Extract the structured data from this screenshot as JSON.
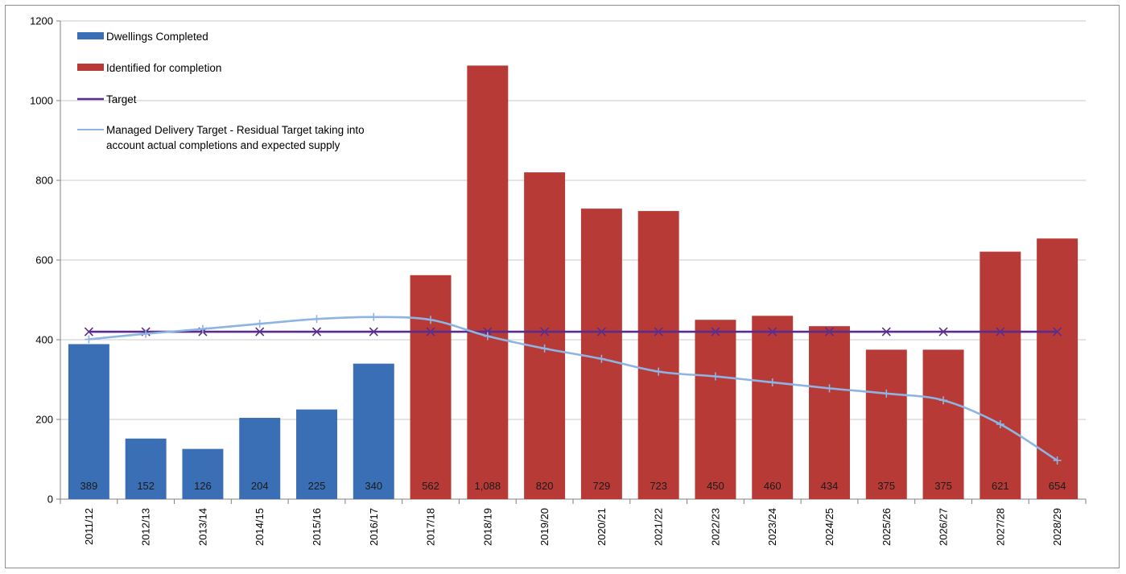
{
  "chart_data": {
    "type": "bar",
    "categories": [
      "2011/12",
      "2012/13",
      "2013/14",
      "2014/15",
      "2015/16",
      "2016/17",
      "2017/18",
      "2018/19",
      "2019/20",
      "2020/21",
      "2021/22",
      "2022/23",
      "2023/24",
      "2024/25",
      "2025/26",
      "2026/27",
      "2027/28",
      "2028/29"
    ],
    "ylim": [
      0,
      1200
    ],
    "yticks": [
      0,
      200,
      400,
      600,
      800,
      1000,
      1200
    ],
    "grid": true,
    "legend_position": "top-left",
    "bar_series": [
      {
        "name": "Dwellings Completed",
        "color": "#3a6fb5",
        "values": [
          389,
          152,
          126,
          204,
          225,
          340,
          null,
          null,
          null,
          null,
          null,
          null,
          null,
          null,
          null,
          null,
          null,
          null
        ]
      },
      {
        "name": "Identified for completion",
        "color": "#b83a36",
        "values": [
          null,
          null,
          null,
          null,
          null,
          null,
          562,
          1088,
          820,
          729,
          723,
          450,
          460,
          434,
          375,
          375,
          621,
          654
        ]
      }
    ],
    "data_labels": [
      "389",
      "152",
      "126",
      "204",
      "225",
      "340",
      "562",
      "1,088",
      "820",
      "729",
      "723",
      "450",
      "460",
      "434",
      "375",
      "375",
      "621",
      "654"
    ],
    "line_series": [
      {
        "name": "Target",
        "color": "#5a2d8c",
        "marker": "x",
        "values": [
          420,
          420,
          420,
          420,
          420,
          420,
          420,
          420,
          420,
          420,
          420,
          420,
          420,
          420,
          420,
          420,
          420,
          420
        ]
      },
      {
        "name": "Managed Delivery Target - Residual Target taking into account actual completions and expected supply",
        "color": "#8db4e2",
        "marker": "+",
        "values": [
          401,
          415,
          427,
          440,
          452,
          457,
          450,
          409,
          378,
          352,
          320,
          308,
          293,
          278,
          265,
          248,
          188,
          97
        ]
      }
    ],
    "legend": [
      {
        "label": "Dwellings Completed",
        "kind": "bar",
        "color": "#3a6fb5"
      },
      {
        "label": "Identified for completion",
        "kind": "bar",
        "color": "#b83a36"
      },
      {
        "label": "Target",
        "kind": "line",
        "color": "#5a2d8c"
      },
      {
        "label": "Managed Delivery Target - Residual Target taking into",
        "label2": "account actual completions and expected supply",
        "kind": "line",
        "color": "#8db4e2"
      }
    ]
  }
}
